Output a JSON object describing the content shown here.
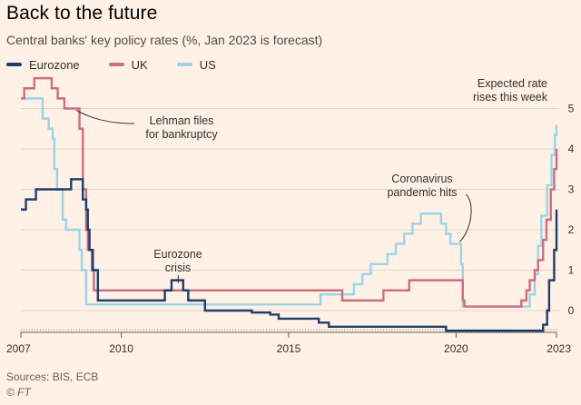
{
  "title": "Back to the future",
  "subtitle": "Central banks' key policy rates (%, Jan 2023 is forecast)",
  "source": "Sources: BIS, ECB",
  "credit": "© FT",
  "colors": {
    "background": "#fff1e5",
    "Eurozone": "#1e3f6b",
    "UK": "#cc6e83",
    "US": "#9bd4e6",
    "grid": "#e0d5cc",
    "axis": "#66605c"
  },
  "chart_data": {
    "type": "line",
    "x_type": "year",
    "xlim": [
      2007.0,
      2023.0
    ],
    "ylim": [
      -0.5,
      5.2
    ],
    "grid": "horizontal",
    "legend_position": "top-left",
    "y_axis_side": "right",
    "x_ticks": [
      {
        "value": 2007,
        "label": "2007"
      },
      {
        "value": 2010,
        "label": "2010"
      },
      {
        "value": 2015,
        "label": "2015"
      },
      {
        "value": 2020,
        "label": "2020"
      },
      {
        "value": 2023,
        "label": "2023"
      }
    ],
    "y_ticks": [
      {
        "value": 0,
        "label": "0"
      },
      {
        "value": 1,
        "label": "1"
      },
      {
        "value": 2,
        "label": "2"
      },
      {
        "value": 3,
        "label": "3"
      },
      {
        "value": 4,
        "label": "4"
      },
      {
        "value": 5,
        "label": "5"
      }
    ],
    "series": [
      {
        "name": "Eurozone",
        "step": true,
        "points": [
          [
            2007.0,
            2.5
          ],
          [
            2007.15,
            2.75
          ],
          [
            2007.45,
            3.0
          ],
          [
            2008.5,
            3.25
          ],
          [
            2008.78,
            3.25
          ],
          [
            2008.85,
            2.75
          ],
          [
            2008.95,
            2.5
          ],
          [
            2009.0,
            2.0
          ],
          [
            2009.05,
            1.5
          ],
          [
            2009.15,
            1.0
          ],
          [
            2009.3,
            0.25
          ],
          [
            2011.3,
            0.5
          ],
          [
            2011.5,
            0.75
          ],
          [
            2011.85,
            0.5
          ],
          [
            2012.0,
            0.25
          ],
          [
            2012.5,
            0.0
          ],
          [
            2013.9,
            -0.05
          ],
          [
            2014.45,
            -0.1
          ],
          [
            2014.7,
            -0.2
          ],
          [
            2015.9,
            -0.3
          ],
          [
            2016.2,
            -0.4
          ],
          [
            2019.7,
            -0.5
          ],
          [
            2022.5,
            -0.5
          ],
          [
            2022.6,
            -0.35
          ],
          [
            2022.72,
            0.0
          ],
          [
            2022.78,
            0.75
          ],
          [
            2022.93,
            1.5
          ],
          [
            2023.0,
            2.5
          ]
        ]
      },
      {
        "name": "UK",
        "step": true,
        "points": [
          [
            2007.0,
            5.25
          ],
          [
            2007.1,
            5.5
          ],
          [
            2007.4,
            5.75
          ],
          [
            2007.92,
            5.5
          ],
          [
            2008.1,
            5.25
          ],
          [
            2008.3,
            5.0
          ],
          [
            2008.75,
            4.5
          ],
          [
            2008.85,
            3.0
          ],
          [
            2008.95,
            2.0
          ],
          [
            2009.0,
            1.5
          ],
          [
            2009.12,
            1.0
          ],
          [
            2009.18,
            0.5
          ],
          [
            2016.6,
            0.25
          ],
          [
            2017.83,
            0.5
          ],
          [
            2018.6,
            0.75
          ],
          [
            2020.2,
            0.25
          ],
          [
            2020.25,
            0.1
          ],
          [
            2021.95,
            0.25
          ],
          [
            2022.1,
            0.5
          ],
          [
            2022.2,
            0.75
          ],
          [
            2022.35,
            1.0
          ],
          [
            2022.45,
            1.25
          ],
          [
            2022.6,
            1.75
          ],
          [
            2022.7,
            2.25
          ],
          [
            2022.83,
            3.0
          ],
          [
            2022.93,
            3.5
          ],
          [
            2023.0,
            4.0
          ]
        ]
      },
      {
        "name": "US",
        "step": true,
        "points": [
          [
            2007.0,
            5.25
          ],
          [
            2007.65,
            4.75
          ],
          [
            2007.83,
            4.5
          ],
          [
            2007.95,
            4.25
          ],
          [
            2008.0,
            3.5
          ],
          [
            2008.08,
            3.0
          ],
          [
            2008.25,
            2.25
          ],
          [
            2008.35,
            2.0
          ],
          [
            2008.75,
            1.5
          ],
          [
            2008.82,
            1.0
          ],
          [
            2008.95,
            0.15
          ],
          [
            2015.95,
            0.4
          ],
          [
            2016.95,
            0.65
          ],
          [
            2017.2,
            0.9
          ],
          [
            2017.45,
            1.15
          ],
          [
            2017.95,
            1.4
          ],
          [
            2018.2,
            1.65
          ],
          [
            2018.45,
            1.9
          ],
          [
            2018.7,
            2.15
          ],
          [
            2018.95,
            2.4
          ],
          [
            2019.55,
            2.15
          ],
          [
            2019.7,
            1.9
          ],
          [
            2019.83,
            1.65
          ],
          [
            2020.15,
            1.15
          ],
          [
            2020.2,
            0.1
          ],
          [
            2022.2,
            0.4
          ],
          [
            2022.35,
            0.9
          ],
          [
            2022.45,
            1.6
          ],
          [
            2022.55,
            2.35
          ],
          [
            2022.72,
            3.1
          ],
          [
            2022.85,
            3.85
          ],
          [
            2022.95,
            4.35
          ],
          [
            2023.0,
            4.6
          ]
        ]
      }
    ],
    "annotations": [
      {
        "lines": [
          "Lehman files",
          "for bankruptcy"
        ],
        "x": 2008.6,
        "y": 5.0
      },
      {
        "lines": [
          "Eurozone",
          "crisis"
        ],
        "x": 2011.7,
        "y": 0.75
      },
      {
        "lines": [
          "Coronavirus",
          "pandemic hits"
        ],
        "x": 2020.05,
        "y": 1.65
      },
      {
        "lines": [
          "Expected rate",
          "rises this week"
        ],
        "x": 2023.0,
        "y": 5.2
      }
    ]
  }
}
